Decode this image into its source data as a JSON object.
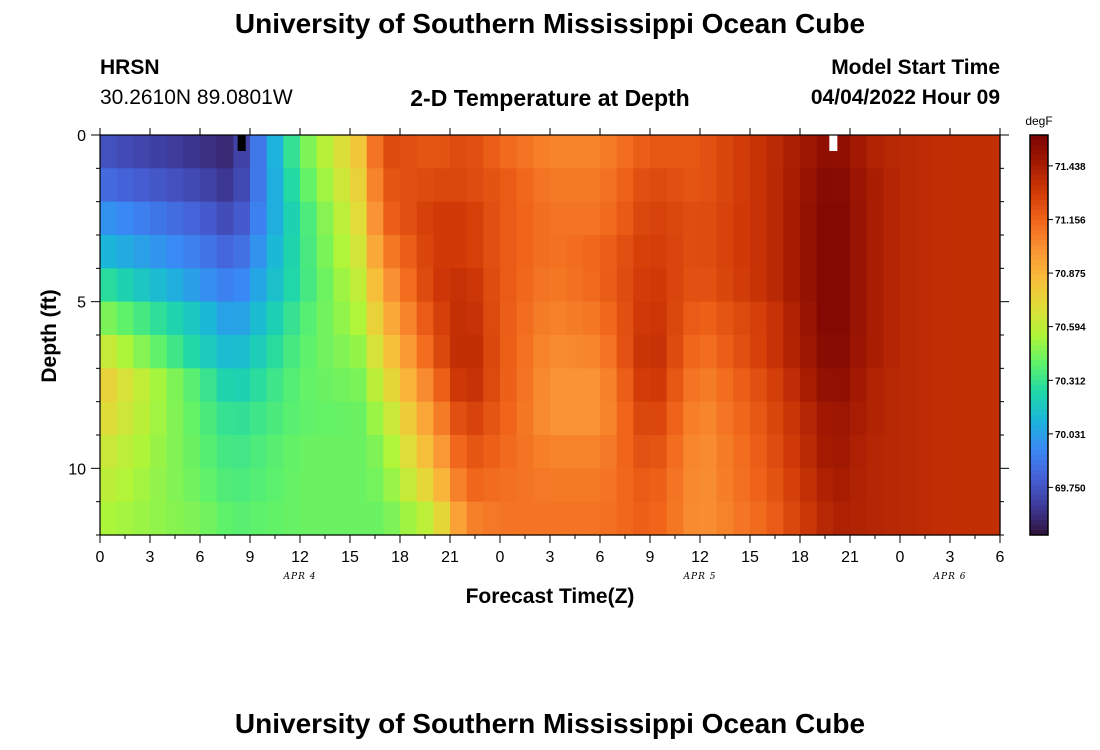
{
  "page": {
    "title": "University of Southern Mississippi Ocean Cube",
    "footer_title": "University of Southern Mississippi Ocean Cube"
  },
  "header": {
    "station": "HRSN",
    "coords": "30.2610N  89.0801W",
    "subtitle": "2-D Temperature at Depth",
    "model_label": "Model Start Time",
    "model_time": "04/04/2022 Hour 09"
  },
  "chart_data": {
    "type": "heatmap",
    "title": "2-D Temperature at Depth",
    "xlabel": "Forecast Time(Z)",
    "ylabel": "Depth (ft)",
    "x_tick_labels": [
      "0",
      "3",
      "6",
      "9",
      "12",
      "15",
      "18",
      "21",
      "0",
      "3",
      "6",
      "9",
      "12",
      "15",
      "18",
      "21",
      "0",
      "3",
      "6"
    ],
    "x_hours_per_tick": 3,
    "x_range_hours": [
      0,
      54
    ],
    "date_labels": [
      {
        "label": "APR 4",
        "hour": 12
      },
      {
        "label": "APR 5",
        "hour": 36
      },
      {
        "label": "APR 6",
        "hour": 51
      }
    ],
    "y_ticks": [
      0,
      5,
      10
    ],
    "y_range_ft": [
      0,
      12
    ],
    "colorbar": {
      "unit": "degF",
      "labels": [
        "71.438",
        "71.156",
        "70.875",
        "70.594",
        "70.312",
        "70.031",
        "69.750"
      ],
      "min": 69.5,
      "max": 71.6,
      "palette": [
        "#30123b",
        "#3e3a9a",
        "#4660d6",
        "#3a88f5",
        "#1bb5db",
        "#1fd7a8",
        "#5ff26a",
        "#b0f537",
        "#e1dc38",
        "#f9bb3a",
        "#fa9334",
        "#f0651a",
        "#d13a07",
        "#a41a02",
        "#7a0403"
      ]
    },
    "time_anchors_hours": [
      0,
      6,
      8,
      12,
      15.5,
      17,
      20,
      22,
      24,
      27,
      30,
      33,
      36,
      40,
      44,
      46,
      48,
      51,
      54
    ],
    "depth_rows_ft": [
      0,
      1,
      2,
      3,
      4,
      5,
      6,
      7,
      8,
      9,
      10,
      11
    ],
    "temperature_rows_degF": [
      [
        69.75,
        69.62,
        69.58,
        70.4,
        70.8,
        71.25,
        71.2,
        71.25,
        71.15,
        71.05,
        71.05,
        71.2,
        71.2,
        71.35,
        71.55,
        71.42,
        71.38,
        71.35,
        71.35
      ],
      [
        69.85,
        69.7,
        69.62,
        70.35,
        70.75,
        71.2,
        71.25,
        71.25,
        71.2,
        71.08,
        71.08,
        71.25,
        71.2,
        71.35,
        71.58,
        71.45,
        71.38,
        71.35,
        71.35
      ],
      [
        70.0,
        69.8,
        69.7,
        70.3,
        70.7,
        71.15,
        71.3,
        71.3,
        71.2,
        71.1,
        71.1,
        71.28,
        71.22,
        71.35,
        71.6,
        71.45,
        71.38,
        71.35,
        71.35
      ],
      [
        70.12,
        69.9,
        69.8,
        70.3,
        70.65,
        71.05,
        71.3,
        71.3,
        71.2,
        71.1,
        71.15,
        71.3,
        71.22,
        71.35,
        71.6,
        71.45,
        71.38,
        71.35,
        71.35
      ],
      [
        70.3,
        70.0,
        69.9,
        70.3,
        70.6,
        70.95,
        71.3,
        71.35,
        71.2,
        71.08,
        71.15,
        71.32,
        71.2,
        71.35,
        71.6,
        71.45,
        71.38,
        71.35,
        71.35
      ],
      [
        70.48,
        70.15,
        70.0,
        70.35,
        70.55,
        70.85,
        71.25,
        71.38,
        71.2,
        71.05,
        71.1,
        71.35,
        71.15,
        71.3,
        71.6,
        71.45,
        71.38,
        71.35,
        71.35
      ],
      [
        70.65,
        70.22,
        70.1,
        70.38,
        70.5,
        70.75,
        71.2,
        71.4,
        71.2,
        71.02,
        71.05,
        71.38,
        71.1,
        71.3,
        71.58,
        71.45,
        71.38,
        71.35,
        71.35
      ],
      [
        70.78,
        70.35,
        70.2,
        70.4,
        70.45,
        70.65,
        71.1,
        71.38,
        71.2,
        71.0,
        71.0,
        71.35,
        71.05,
        71.25,
        71.55,
        71.42,
        71.38,
        71.35,
        71.35
      ],
      [
        70.72,
        70.38,
        70.28,
        70.4,
        70.42,
        70.55,
        71.0,
        71.3,
        71.18,
        71.0,
        71.0,
        71.3,
        71.02,
        71.22,
        71.5,
        71.42,
        71.38,
        71.35,
        71.35
      ],
      [
        70.65,
        70.4,
        70.32,
        70.42,
        70.42,
        70.48,
        70.9,
        71.22,
        71.15,
        71.05,
        71.05,
        71.25,
        71.0,
        71.2,
        71.48,
        71.4,
        71.38,
        71.35,
        71.35
      ],
      [
        70.6,
        70.42,
        70.35,
        70.42,
        70.42,
        70.45,
        70.78,
        71.15,
        71.12,
        71.08,
        71.08,
        71.2,
        71.0,
        71.18,
        71.45,
        71.4,
        71.38,
        71.35,
        71.35
      ],
      [
        70.55,
        70.45,
        70.38,
        70.42,
        70.42,
        70.42,
        70.62,
        71.05,
        71.1,
        71.1,
        71.1,
        71.18,
        71.0,
        71.15,
        71.42,
        71.4,
        71.38,
        71.35,
        71.35
      ]
    ],
    "min_marker": {
      "hour": 8.5,
      "depth_ft": 0
    },
    "max_marker": {
      "hour": 44,
      "depth_ft": 0
    },
    "grid": false
  }
}
